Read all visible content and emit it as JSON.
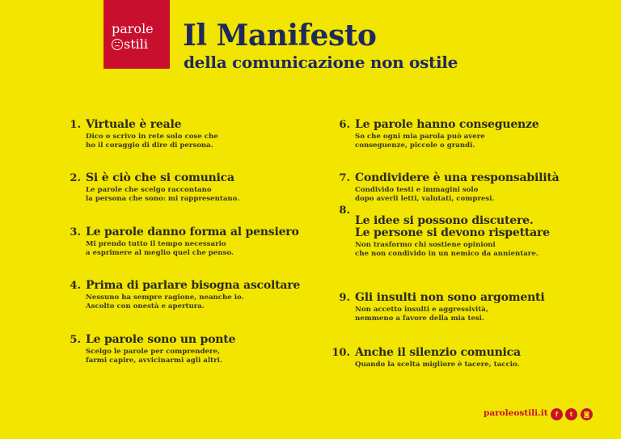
{
  "logo": {
    "line1": "parole",
    "line2": "stili"
  },
  "header": {
    "title": "Il Manifesto",
    "subtitle": "della comunicazione non ostile"
  },
  "items": [
    {
      "num": "1.",
      "title": "Virtuale è reale",
      "desc1": "Dico o scrivo in rete solo cose che",
      "desc2": "ho il coraggio di dire di persona."
    },
    {
      "num": "2.",
      "title": "Si è ciò che si comunica",
      "desc1": "Le parole che scelgo raccontano",
      "desc2": "la persona che sono: mi rappresentano."
    },
    {
      "num": "3.",
      "title": "Le parole danno forma al pensiero",
      "desc1": "Mi prendo tutto il tempo necessario",
      "desc2": "a esprimere al meglio quel che penso."
    },
    {
      "num": "4.",
      "title": "Prima di parlare bisogna ascoltare",
      "desc1": "Nessuno ha sempre ragione, neanche io.",
      "desc2": "Ascolto con onestà e apertura."
    },
    {
      "num": "5.",
      "title": "Le parole sono un ponte",
      "desc1": "Scelgo le parole per comprendere,",
      "desc2": "farmi capire, avvicinarmi agli altri."
    },
    {
      "num": "6.",
      "title": "Le parole hanno conseguenze",
      "desc1": "So che ogni mia parola può avere",
      "desc2": "conseguenze, piccole o grandi."
    },
    {
      "num": "7.",
      "title": "Condividere è una responsabilità",
      "desc1": "Condivido testi e immagini solo",
      "desc2": "dopo averli letti, valutati, compresi."
    },
    {
      "num": "8.",
      "title": "Le idee si possono discutere.",
      "title2": "Le persone si devono rispettare",
      "desc1": "Non trasformo chi sostiene opinioni",
      "desc2": "che non condivido in un nemico da annientare."
    },
    {
      "num": "9.",
      "title": "Gli insulti non sono argomenti",
      "desc1": "Non accetto insulti e aggressività,",
      "desc2": "nemmeno a favore della mia tesi."
    },
    {
      "num": "10.",
      "title": "Anche il silenzio comunica",
      "desc1": "Quando la scelta migliore è tacere, taccio."
    }
  ],
  "footer": {
    "link": "paroleostili.it",
    "social": [
      {
        "icon": "facebook-icon",
        "glyph": "f"
      },
      {
        "icon": "twitter-icon",
        "glyph": "t"
      },
      {
        "icon": "instagram-icon",
        "glyph": "◙"
      }
    ]
  },
  "colors": {
    "background": "#f2e500",
    "brand_red": "#c8102e",
    "navy": "#1e2a5e"
  }
}
